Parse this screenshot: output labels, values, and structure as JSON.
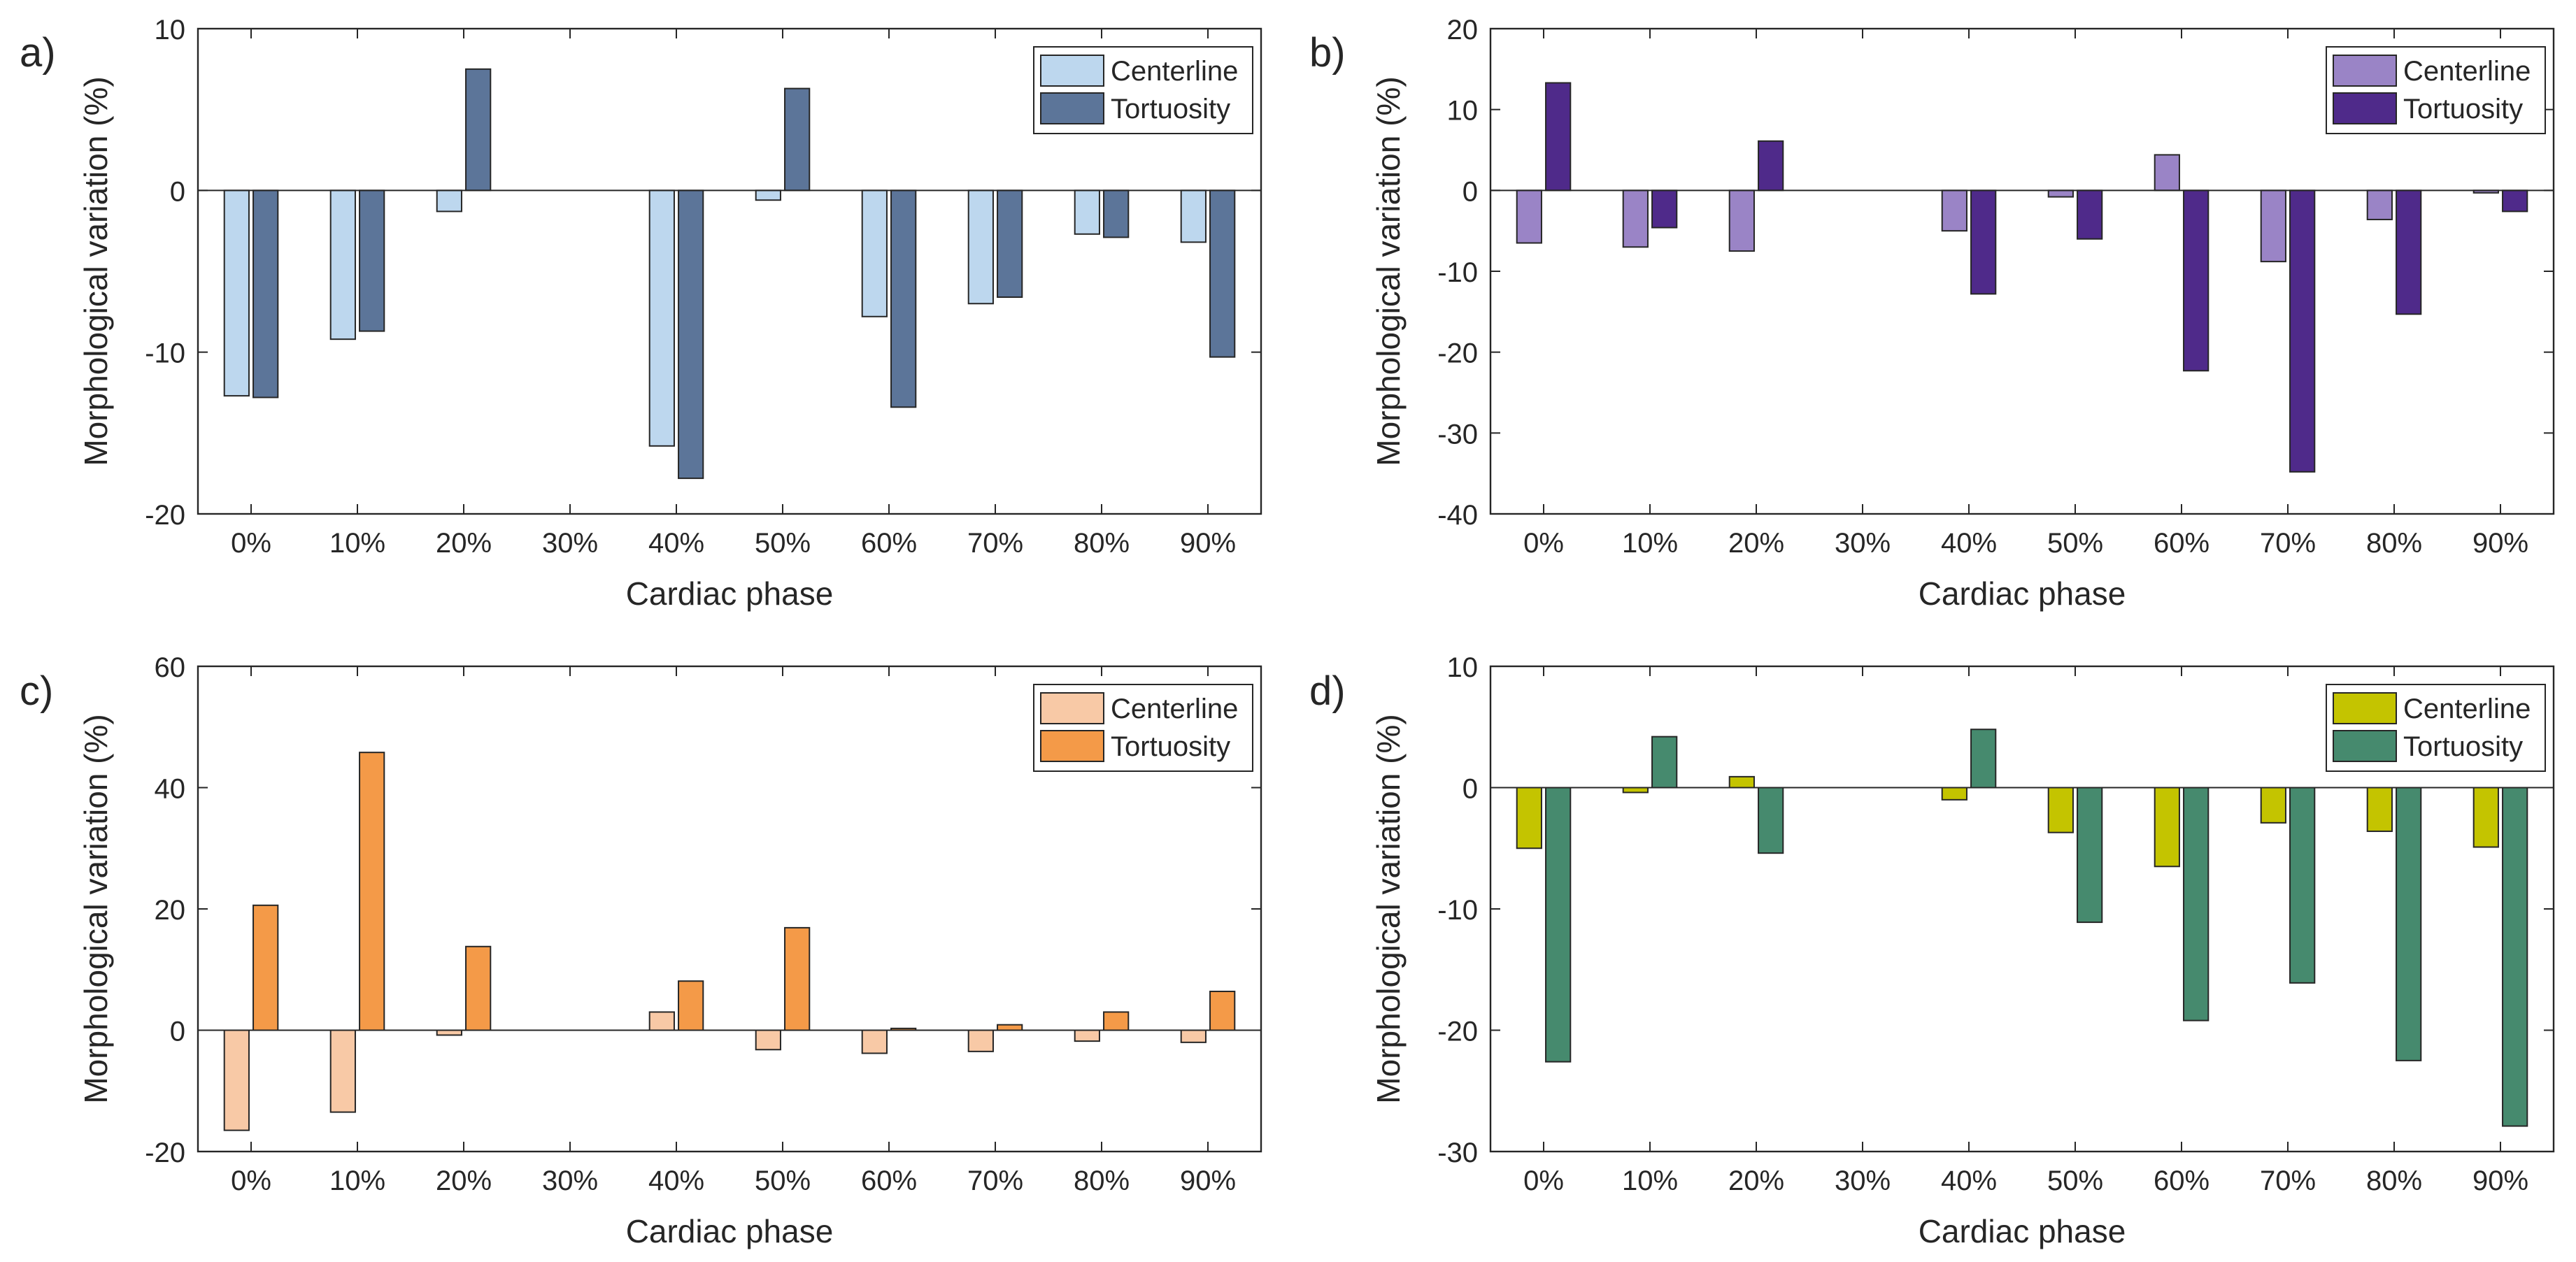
{
  "figure": {
    "panels": [
      "a)",
      "b)",
      "c)",
      "d)"
    ]
  },
  "chart_data": [
    {
      "panel": "a)",
      "type": "bar",
      "xlabel": "Cardiac phase",
      "ylabel": "Morphological variation (%)",
      "ylim": [
        -20,
        10
      ],
      "yticks": [
        -20,
        -10,
        0,
        10
      ],
      "grid": false,
      "legend_position": "top-right",
      "categories": [
        "0%",
        "10%",
        "20%",
        "30%",
        "40%",
        "50%",
        "60%",
        "70%",
        "80%",
        "90%"
      ],
      "series": [
        {
          "name": "Centerline",
          "color": "#bdd7ee",
          "values": [
            -12.7,
            -9.2,
            -1.3,
            0,
            -15.8,
            -0.6,
            -7.8,
            -7.0,
            -2.7,
            -3.2
          ]
        },
        {
          "name": "Tortuosity",
          "color": "#5c7599",
          "values": [
            -12.8,
            -8.7,
            7.5,
            0,
            -17.8,
            6.3,
            -13.4,
            -6.6,
            -2.9,
            -10.3
          ]
        }
      ]
    },
    {
      "panel": "b)",
      "type": "bar",
      "xlabel": "Cardiac phase",
      "ylabel": "Morphological variation (%)",
      "ylim": [
        -40,
        20
      ],
      "yticks": [
        -40,
        -30,
        -20,
        -10,
        0,
        10,
        20
      ],
      "grid": false,
      "legend_position": "top-right",
      "categories": [
        "0%",
        "10%",
        "20%",
        "30%",
        "40%",
        "50%",
        "60%",
        "70%",
        "80%",
        "90%"
      ],
      "series": [
        {
          "name": "Centerline",
          "color": "#9a84c6",
          "values": [
            -6.5,
            -7.0,
            -7.5,
            0,
            -5.0,
            -0.8,
            4.4,
            -8.8,
            -3.6,
            -0.3
          ]
        },
        {
          "name": "Tortuosity",
          "color": "#4f2a8a",
          "values": [
            13.3,
            -4.6,
            6.1,
            0,
            -12.8,
            -6.0,
            -22.3,
            -34.8,
            -15.3,
            -2.6
          ]
        }
      ]
    },
    {
      "panel": "c)",
      "type": "bar",
      "xlabel": "Cardiac phase",
      "ylabel": "Morphological variation (%)",
      "ylim": [
        -20,
        60
      ],
      "yticks": [
        -20,
        0,
        20,
        40,
        60
      ],
      "grid": false,
      "legend_position": "top-right",
      "categories": [
        "0%",
        "10%",
        "20%",
        "30%",
        "40%",
        "50%",
        "60%",
        "70%",
        "80%",
        "90%"
      ],
      "series": [
        {
          "name": "Centerline",
          "color": "#f8c9a6",
          "values": [
            -16.5,
            -13.5,
            -0.8,
            0,
            3.0,
            -3.2,
            -3.8,
            -3.5,
            -1.8,
            -2.0
          ]
        },
        {
          "name": "Tortuosity",
          "color": "#f49a48",
          "values": [
            20.6,
            45.8,
            13.8,
            0,
            8.1,
            16.9,
            0.3,
            0.9,
            3.0,
            6.4
          ]
        }
      ]
    },
    {
      "panel": "d)",
      "type": "bar",
      "xlabel": "Cardiac phase",
      "ylabel": "Morphological variation (%)",
      "ylim": [
        -30,
        10
      ],
      "yticks": [
        -30,
        -20,
        -10,
        0,
        10
      ],
      "grid": false,
      "legend_position": "top-right",
      "categories": [
        "0%",
        "10%",
        "20%",
        "30%",
        "40%",
        "50%",
        "60%",
        "70%",
        "80%",
        "90%"
      ],
      "series": [
        {
          "name": "Centerline",
          "color": "#c4c400",
          "values": [
            -5.0,
            -0.4,
            0.9,
            0,
            -1.0,
            -3.7,
            -6.5,
            -2.9,
            -3.6,
            -4.9
          ]
        },
        {
          "name": "Tortuosity",
          "color": "#468a6e",
          "values": [
            -22.6,
            4.2,
            -5.4,
            0,
            4.8,
            -11.1,
            -19.2,
            -16.1,
            -22.5,
            -27.9
          ]
        }
      ]
    }
  ]
}
